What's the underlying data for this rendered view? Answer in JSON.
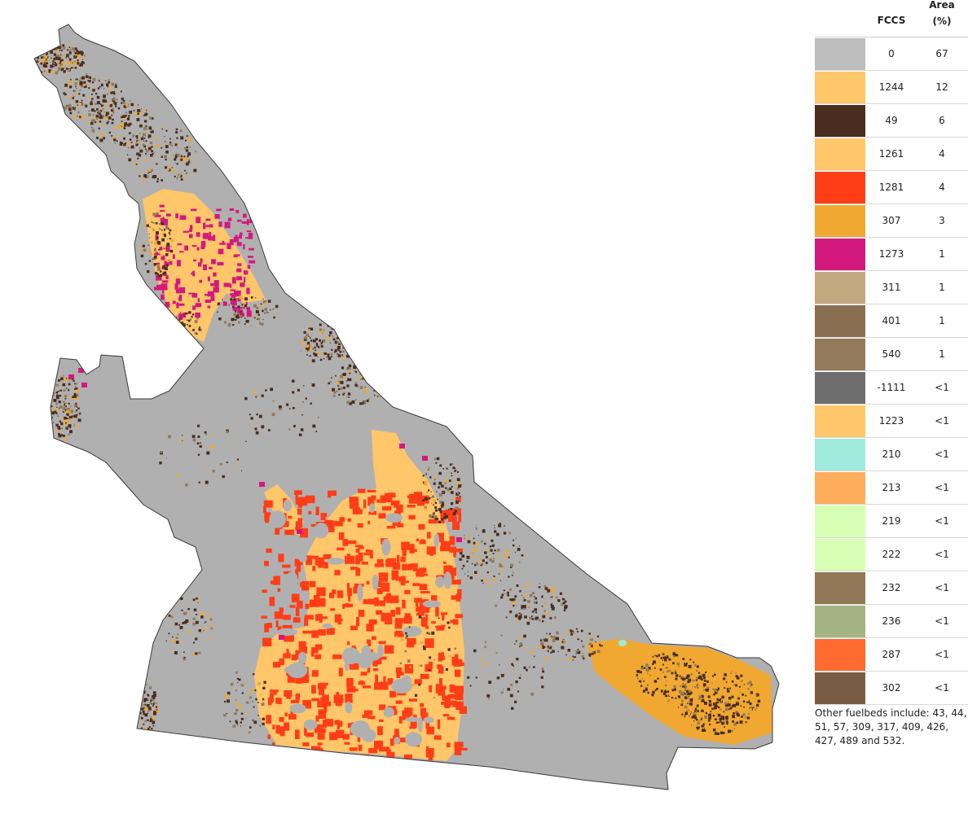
{
  "legend": {
    "headers": {
      "fccs": "FCCS",
      "area_line1": "Area",
      "area_line2": "(%)"
    },
    "rows": [
      {
        "code": "0",
        "area": "67",
        "color": "#bdbdbd"
      },
      {
        "code": "1244",
        "area": "12",
        "color": "#ffc66a"
      },
      {
        "code": "49",
        "area": "6",
        "color": "#4a2d1e"
      },
      {
        "code": "1261",
        "area": "4",
        "color": "#ffc66a"
      },
      {
        "code": "1281",
        "area": "4",
        "color": "#ff3d17"
      },
      {
        "code": "307",
        "area": "3",
        "color": "#f0a830"
      },
      {
        "code": "1273",
        "area": "1",
        "color": "#d4197e"
      },
      {
        "code": "311",
        "area": "1",
        "color": "#c2a87e"
      },
      {
        "code": "401",
        "area": "1",
        "color": "#8a6e52"
      },
      {
        "code": "540",
        "area": "1",
        "color": "#937a5a"
      },
      {
        "code": "-1111",
        "area": "<1",
        "color": "#6e6e6e"
      },
      {
        "code": "1223",
        "area": "<1",
        "color": "#ffc66a"
      },
      {
        "code": "210",
        "area": "<1",
        "color": "#9feadb"
      },
      {
        "code": "213",
        "area": "<1",
        "color": "#ffad5c"
      },
      {
        "code": "219",
        "area": "<1",
        "color": "#d6ffb4"
      },
      {
        "code": "222",
        "area": "<1",
        "color": "#d6ffb4"
      },
      {
        "code": "232",
        "area": "<1",
        "color": "#927856"
      },
      {
        "code": "236",
        "area": "<1",
        "color": "#a3b383"
      },
      {
        "code": "287",
        "area": "<1",
        "color": "#ff6a2e"
      },
      {
        "code": "302",
        "area": "<1",
        "color": "#7a5c44"
      }
    ],
    "note": "Other fuelbeds include: 43, 44, 51, 57, 309, 317, 409, 426, 427, 489 and 532."
  },
  "map": {
    "base_color": "#b0b0b0",
    "outline_color": "#3a3a3a"
  }
}
